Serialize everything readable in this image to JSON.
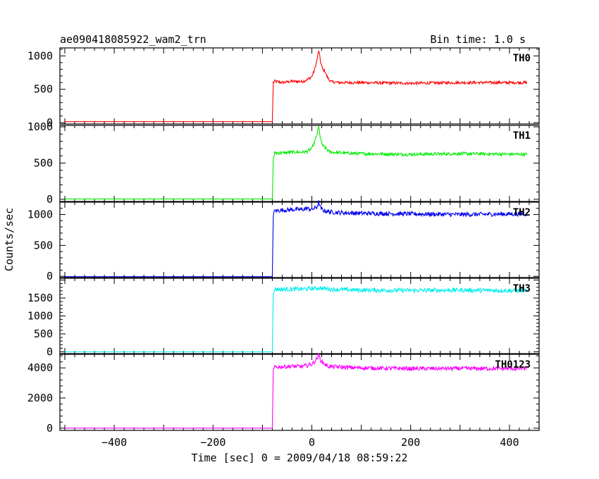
{
  "header": {
    "title": "ae090418085922_wam2_trn",
    "bin_time": "Bin time: 1.0 s"
  },
  "axes": {
    "xlabel": "Time [sec] 0 = 2009/04/18 08:59:22",
    "ylabel": "Counts/sec"
  },
  "chart_data": {
    "type": "line",
    "title": "ae090418085922_wam2_trn",
    "subtitle": "Bin time: 1.0 s",
    "xlabel": "Time [sec] 0 = 2009/04/18 08:59:22",
    "ylabel": "Counts/sec",
    "xlim": [
      -510,
      460
    ],
    "x_ticks": [
      -400,
      -200,
      0,
      200,
      400
    ],
    "x_tick_labels": [
      "−400",
      "−200",
      "0",
      "200",
      "400"
    ],
    "grid": false,
    "shared_x": true,
    "bin_time_s": 1.0,
    "panels": [
      {
        "name": "TH0",
        "color": "#ff0000",
        "ylim": [
          -20,
          1120
        ],
        "y_ticks": [
          0,
          500,
          1000
        ],
        "y_tick_labels": [
          "0",
          "500",
          "1000"
        ],
        "series": {
          "x": [
            -500,
            -90,
            -80,
            -78,
            -75,
            -60,
            -40,
            -20,
            -10,
            0,
            5,
            10,
            14,
            18,
            22,
            26,
            30,
            35,
            40,
            60,
            100,
            200,
            300,
            435
          ],
          "y": [
            15,
            15,
            15,
            600,
            620,
            600,
            620,
            615,
            640,
            690,
            780,
            920,
            1080,
            900,
            800,
            780,
            700,
            640,
            610,
            600,
            600,
            590,
            600,
            600
          ]
        }
      },
      {
        "name": "TH1",
        "color": "#00ee00",
        "ylim": [
          -30,
          1020
        ],
        "y_ticks": [
          0,
          500,
          1000
        ],
        "y_tick_labels": [
          "0",
          "500",
          "1000"
        ],
        "series": {
          "x": [
            -500,
            -90,
            -80,
            -78,
            -75,
            -60,
            -40,
            -20,
            -10,
            0,
            5,
            10,
            14,
            18,
            22,
            26,
            30,
            35,
            40,
            60,
            100,
            200,
            300,
            435
          ],
          "y": [
            5,
            5,
            5,
            560,
            640,
            640,
            650,
            650,
            660,
            700,
            780,
            880,
            1000,
            820,
            740,
            720,
            690,
            660,
            650,
            640,
            630,
            620,
            630,
            620
          ]
        }
      },
      {
        "name": "TH2",
        "color": "#0000ee",
        "ylim": [
          -20,
          1200
        ],
        "y_ticks": [
          0,
          500,
          1000
        ],
        "y_tick_labels": [
          "0",
          "500",
          "1000"
        ],
        "series": {
          "x": [
            -500,
            -90,
            -80,
            -78,
            -75,
            -60,
            -40,
            -20,
            -10,
            0,
            10,
            14,
            18,
            25,
            40,
            60,
            100,
            200,
            300,
            435
          ],
          "y": [
            -5,
            -5,
            -5,
            1000,
            1060,
            1070,
            1080,
            1080,
            1100,
            1080,
            1120,
            1200,
            1100,
            1060,
            1040,
            1030,
            1020,
            1010,
            1000,
            1010
          ]
        }
      },
      {
        "name": "TH3",
        "color": "#00eeee",
        "ylim": [
          -50,
          2050
        ],
        "y_ticks": [
          0,
          500,
          1000,
          1500
        ],
        "y_tick_labels": [
          "0",
          "500",
          "1000",
          "1500"
        ],
        "series": {
          "x": [
            -500,
            -90,
            -80,
            -78,
            -75,
            -60,
            -20,
            0,
            14,
            40,
            100,
            200,
            300,
            435
          ],
          "y": [
            0,
            0,
            0,
            1600,
            1750,
            1740,
            1750,
            1760,
            1780,
            1740,
            1720,
            1710,
            1720,
            1700
          ]
        }
      },
      {
        "name": "TH0123",
        "color": "#ff00ff",
        "ylim": [
          -150,
          4900
        ],
        "y_ticks": [
          0,
          2000,
          4000
        ],
        "y_tick_labels": [
          "0",
          "2000",
          "4000"
        ],
        "series": {
          "x": [
            -500,
            -90,
            -80,
            -78,
            -75,
            -60,
            -40,
            -20,
            -10,
            0,
            5,
            10,
            14,
            18,
            22,
            26,
            30,
            35,
            40,
            60,
            100,
            200,
            300,
            435
          ],
          "y": [
            0,
            0,
            0,
            3800,
            4050,
            4080,
            4100,
            4100,
            4150,
            4250,
            4400,
            4600,
            4850,
            4500,
            4350,
            4250,
            4150,
            4100,
            4080,
            4050,
            4000,
            3950,
            3960,
            3950
          ]
        }
      }
    ]
  }
}
